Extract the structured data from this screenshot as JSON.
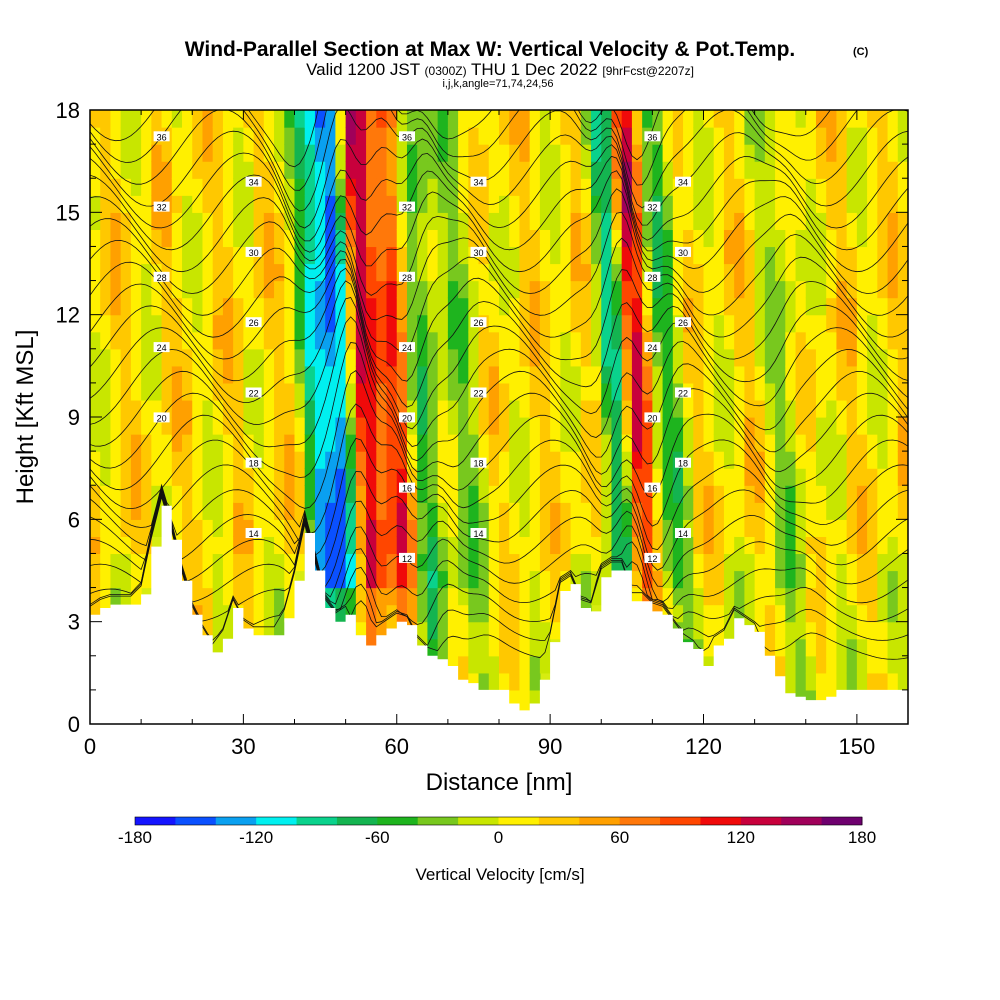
{
  "title": {
    "main": "Wind-Parallel Section at Max W: Vertical Velocity & Pot.Temp.",
    "copyright_mark": "(C)",
    "valid_prefix": "Valid 1200 JST",
    "valid_zulu": "(0300Z)",
    "valid_date": "THU 1 Dec 2022",
    "forecast_info": "[9hrFcst@2207z]",
    "grid_info": "i,j,k,angle=71,74,24,56"
  },
  "chart_data": {
    "type": "heatmap",
    "xlabel": "Distance [nm]",
    "ylabel": "Height [Kft MSL]",
    "xlim": [
      0,
      160
    ],
    "ylim": [
      0,
      18
    ],
    "x_ticks": [
      0,
      30,
      60,
      90,
      120,
      150
    ],
    "y_ticks": [
      0,
      3,
      6,
      9,
      12,
      15,
      18
    ],
    "colorbar": {
      "label": "Vertical Velocity [cm/s]",
      "tick_values": [
        -180,
        -120,
        -60,
        0,
        60,
        120,
        180
      ],
      "bounds": [
        -180,
        180
      ],
      "colors": [
        "#1414ff",
        "#0a50ff",
        "#0aa0f0",
        "#00f0f0",
        "#0ad28c",
        "#14b450",
        "#1eb41e",
        "#78c81e",
        "#c8e600",
        "#fff000",
        "#ffc800",
        "#ffa000",
        "#ff780a",
        "#ff4600",
        "#f00a0a",
        "#c8003c",
        "#a0005a",
        "#6e006e"
      ]
    },
    "terrain_profile": {
      "x": [
        0,
        2,
        4,
        6,
        8,
        10,
        12,
        14,
        16,
        18,
        20,
        22,
        24,
        26,
        28,
        30,
        32,
        34,
        36,
        38,
        40,
        42,
        44,
        46,
        48,
        50,
        52,
        54,
        56,
        58,
        60,
        62,
        64,
        66,
        68,
        70,
        72,
        74,
        76,
        78,
        80,
        82,
        84,
        86,
        88,
        90,
        92,
        94,
        96,
        98,
        100,
        102,
        104,
        106,
        108,
        110,
        112,
        114,
        116,
        118,
        120,
        122,
        124,
        126,
        128,
        130,
        132,
        134,
        136,
        138,
        140,
        142,
        144,
        146,
        148,
        150,
        152,
        154,
        156,
        158,
        160
      ],
      "height_kft": [
        3.2,
        3.4,
        3.5,
        3.5,
        3.5,
        3.8,
        5.2,
        6.4,
        5.4,
        4.2,
        3.2,
        2.6,
        2.1,
        2.5,
        3.4,
        2.8,
        2.6,
        2.6,
        2.6,
        3.1,
        4.2,
        5.6,
        4.5,
        3.4,
        3.0,
        3.2,
        2.6,
        2.3,
        2.6,
        2.8,
        3.0,
        2.9,
        2.3,
        2.0,
        1.9,
        1.7,
        1.3,
        1.2,
        1.0,
        1.0,
        1.0,
        0.6,
        0.4,
        0.6,
        1.3,
        2.4,
        3.9,
        4.1,
        3.4,
        3.3,
        4.3,
        4.5,
        4.5,
        3.6,
        3.6,
        3.3,
        3.2,
        2.8,
        2.4,
        2.2,
        1.7,
        2.3,
        2.5,
        3.1,
        2.9,
        2.7,
        2.0,
        1.4,
        0.9,
        0.8,
        0.7,
        0.7,
        0.8,
        1.0,
        1.0,
        1.0,
        1.0,
        1.0,
        1.0,
        1.0,
        1.0
      ]
    },
    "vertical_velocity_features": [
      {
        "x_nm": 44.5,
        "w_cms": -110
      },
      {
        "x_nm": 48.5,
        "w_cms": -160
      },
      {
        "x_nm": 53.5,
        "w_cms": 130
      },
      {
        "x_nm": 60.5,
        "w_cms": 95
      },
      {
        "x_nm": 65.0,
        "w_cms": -70
      },
      {
        "x_nm": 73.0,
        "w_cms": -35
      },
      {
        "x_nm": 102.5,
        "w_cms": -100
      },
      {
        "x_nm": 106.5,
        "w_cms": 110
      },
      {
        "x_nm": 112.5,
        "w_cms": -55
      },
      {
        "x_nm": 136.0,
        "w_cms": -35
      }
    ],
    "theta_contour_labels": [
      "36",
      "34",
      "32",
      "30",
      "28",
      "26",
      "24",
      "22",
      "20",
      "18",
      "16",
      "14",
      "12"
    ],
    "theta_contour_levels": [
      12,
      13,
      14,
      15,
      16,
      17,
      18,
      19,
      20,
      21,
      22,
      23,
      24,
      25,
      26,
      27,
      28,
      29,
      30,
      31,
      32,
      33,
      34,
      35,
      36,
      37
    ]
  }
}
